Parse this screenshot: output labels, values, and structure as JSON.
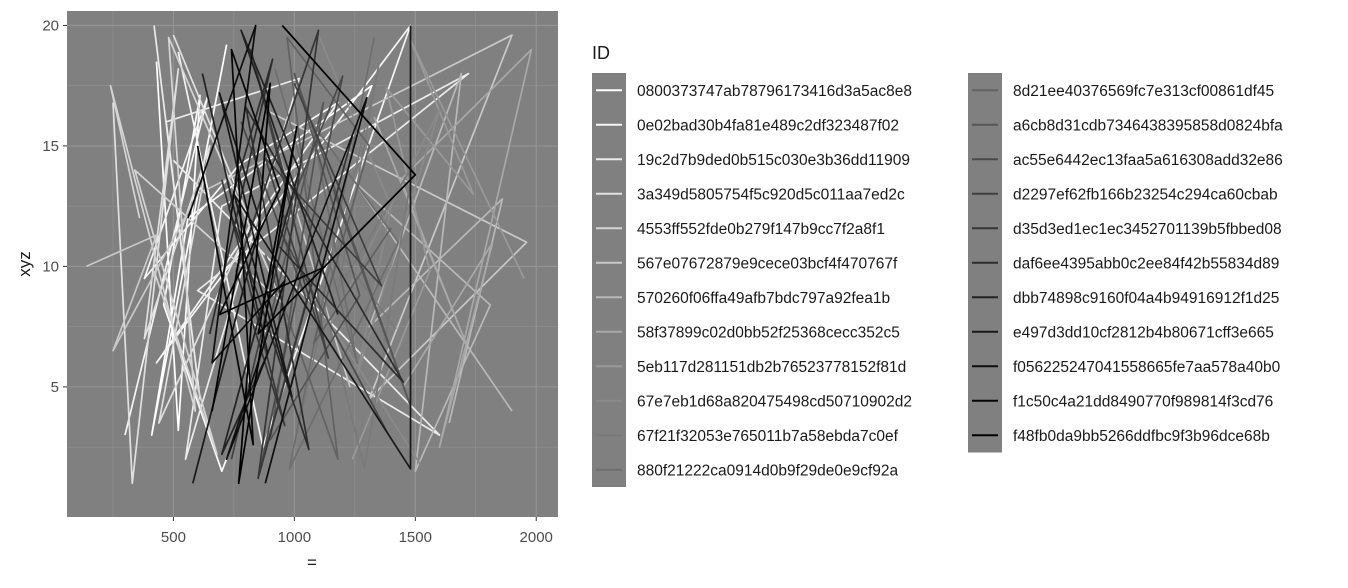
{
  "chart_data": {
    "type": "line",
    "xlabel": "=",
    "ylabel": "xyz",
    "xlim": [
      60,
      2090
    ],
    "ylim": [
      -0.4,
      20.6
    ],
    "x_ticks": [
      500,
      1000,
      1500,
      2000
    ],
    "x_tick_labels": [
      "500",
      "1000",
      "1500",
      "2000"
    ],
    "y_ticks": [
      5,
      10,
      15,
      20
    ],
    "y_tick_labels": [
      "5",
      "10",
      "15",
      "20"
    ],
    "grid": true,
    "panel_background": "#808080",
    "grid_color": "#959595",
    "legend": {
      "title": "ID",
      "placement": "right",
      "columns": 2,
      "key_background": "#808080"
    },
    "series": [
      {
        "name": "0800373747ab78796173416d3a5ac8e8",
        "color": "#ffffff",
        "x": [
          430,
          520,
          610,
          460,
          700,
          1320,
          560,
          410,
          720
        ],
        "y": [
          18.5,
          3.2,
          17.1,
          8.4,
          1.5,
          17.5,
          12.0,
          3.0,
          19.2
        ]
      },
      {
        "name": "0e02bad30b4fa81e489c2df323487f02",
        "color": "#f5f5f5",
        "x": [
          300,
          640,
          380,
          770,
          1180,
          430,
          1480,
          870,
          520
        ],
        "y": [
          3.0,
          17.0,
          9.5,
          14.2,
          16.8,
          6.0,
          20.0,
          2.5,
          18.9
        ]
      },
      {
        "name": "19c2d7b9ded0b515c030e3b36dd11909",
        "color": "#ebebeb",
        "x": [
          420,
          610,
          470,
          1020,
          550,
          700,
          1720,
          600,
          1600,
          500
        ],
        "y": [
          20.0,
          4.5,
          16.0,
          17.8,
          2.0,
          12.5,
          18.0,
          9.0,
          3.0,
          14.4
        ]
      },
      {
        "name": "3a349d5805754f5c920d5c011aa7ed2c",
        "color": "#e0e0e0",
        "x": [
          250,
          330,
          520,
          380,
          650,
          440,
          820,
          500
        ],
        "y": [
          16.8,
          1.0,
          18.2,
          7.0,
          15.0,
          3.5,
          11.8,
          19.6
        ]
      },
      {
        "name": "4553ff552fde0b279f147b9cc7f2a8f1",
        "color": "#d4d4d4",
        "x": [
          360,
          240,
          590,
          480,
          950,
          340,
          680,
          420
        ],
        "y": [
          12.0,
          17.5,
          4.0,
          19.5,
          8.5,
          14.0,
          2.2,
          9.8
        ]
      },
      {
        "name": "567e07672879e9cece03bcf4f470767f",
        "color": "#c8c8c8",
        "x": [
          140,
          430,
          250,
          600,
          1900,
          1310,
          1960,
          880,
          1230
        ],
        "y": [
          10.0,
          11.3,
          6.5,
          13.0,
          19.6,
          4.5,
          11.0,
          16.5,
          5.0
        ]
      },
      {
        "name": "570260f06ffa49afb7bdc797a92fea1b",
        "color": "#b8b8b8",
        "x": [
          1640,
          1860,
          1310,
          1690,
          1500,
          1810,
          1250,
          1900
        ],
        "y": [
          3.5,
          12.8,
          7.5,
          18.0,
          1.5,
          8.4,
          13.5,
          4.0
        ]
      },
      {
        "name": "58f37899c02d0bb52f25368cecc352c5",
        "color": "#a8a8a8",
        "x": [
          1450,
          1820,
          1600,
          1980,
          1440,
          1710,
          1330
        ],
        "y": [
          5.0,
          11.0,
          2.5,
          19.0,
          13.6,
          6.8,
          16.2
        ]
      },
      {
        "name": "5eb117d281151db2b76523778152f81d",
        "color": "#999999",
        "x": [
          1240,
          1560,
          1380,
          1740,
          1480,
          1950
        ],
        "y": [
          2.0,
          9.8,
          17.4,
          13.0,
          19.4,
          9.5
        ]
      },
      {
        "name": "67e7eb1d68a820475498cd50710902d2",
        "color": "#8a8a8a",
        "x": [
          1100,
          1400,
          1260,
          1600,
          1150,
          1520
        ],
        "y": [
          19.6,
          12.5,
          5.5,
          16.5,
          7.6,
          1.8
        ]
      },
      {
        "name": "67f21f32053e765011b7a58ebda7c0ef",
        "color": "#7a7a7a",
        "x": [
          1020,
          1350,
          1180,
          1490,
          1290,
          1010,
          1420
        ],
        "y": [
          3.5,
          18.4,
          9.0,
          14.2,
          1.6,
          13.0,
          7.4
        ]
      },
      {
        "name": "880f21222ca0914d0b9f29de0e9cf92a",
        "color": "#6e6e6e",
        "x": [
          920,
          1260,
          1070,
          1430,
          980,
          1330
        ],
        "y": [
          18.2,
          6.0,
          16.0,
          11.0,
          1.6,
          19.5
        ]
      },
      {
        "name": "8d21ee40376569fc7e313cf00861df45",
        "color": "#626262",
        "x": [
          880,
          1180,
          970,
          1310,
          1080,
          1400
        ],
        "y": [
          10.5,
          2.0,
          19.5,
          15.0,
          6.8,
          11.6
        ]
      },
      {
        "name": "a6cb8d31cdb7346438395858d0824bfa",
        "color": "#565656",
        "x": [
          830,
          1120,
          900,
          1270,
          1000,
          1480,
          1160
        ],
        "y": [
          5.0,
          16.8,
          2.8,
          8.8,
          18.0,
          4.2,
          13.2
        ]
      },
      {
        "name": "ac55e6442ec13faa5a616308add32e86",
        "color": "#4a4a4a",
        "x": [
          780,
          1050,
          860,
          1200,
          940,
          1390
        ],
        "y": [
          16.0,
          8.6,
          1.6,
          17.9,
          11.5,
          3.0
        ]
      },
      {
        "name": "d2297ef62fb166b23254c294ca60cbab",
        "color": "#404040",
        "x": [
          740,
          990,
          820,
          1140,
          880,
          1360,
          1000
        ],
        "y": [
          2.0,
          12.6,
          19.0,
          6.2,
          14.5,
          9.2,
          17.6
        ]
      },
      {
        "name": "d35d3ed1ec1ec3452701139b5fbbed08",
        "color": "#363636",
        "x": [
          700,
          960,
          760,
          1100,
          850,
          1240
        ],
        "y": [
          13.6,
          3.4,
          9.8,
          19.8,
          1.2,
          15.4
        ]
      },
      {
        "name": "daf6ee4395abb0c2ee84f42b55834d89",
        "color": "#2c2c2c",
        "x": [
          650,
          910,
          730,
          1060,
          800,
          1450,
          940
        ],
        "y": [
          7.2,
          18.6,
          12.4,
          2.4,
          16.6,
          5.2,
          10.8
        ]
      },
      {
        "name": "dbb74898c9160f04a4b94916912f1d25",
        "color": "#222222",
        "x": [
          620,
          890,
          700,
          1020,
          780,
          1180
        ],
        "y": [
          18.0,
          6.4,
          2.2,
          14.0,
          19.8,
          8.0
        ]
      },
      {
        "name": "e497d3dd10cf2812b4b80671cff3e665",
        "color": "#181818",
        "x": [
          580,
          860,
          690,
          990,
          750,
          1480,
          1480
        ],
        "y": [
          1.0,
          11.8,
          17.2,
          4.6,
          13.0,
          1.6,
          20.0
        ]
      },
      {
        "name": "f056225247041558665fe7aa578a40b0",
        "color": "#0e0e0e",
        "x": [
          560,
          840,
          660,
          960,
          720,
          1300,
          880
        ],
        "y": [
          12.0,
          20.0,
          6.0,
          9.4,
          2.0,
          17.0,
          1.0
        ]
      },
      {
        "name": "f1c50c4a21dd8490770f989814f3cd76",
        "color": "#060606",
        "x": [
          600,
          830,
          740,
          940,
          690,
          1130
        ],
        "y": [
          15.0,
          2.6,
          19.0,
          13.2,
          8.0,
          10.0
        ]
      },
      {
        "name": "f48fb0da9bb5266ddfbc9f3b96dce68b",
        "color": "#000000",
        "x": [
          660,
          900,
          770,
          1010,
          850,
          1500,
          950
        ],
        "y": [
          4.0,
          17.6,
          1.0,
          15.8,
          7.2,
          13.8,
          20.0
        ]
      }
    ]
  }
}
